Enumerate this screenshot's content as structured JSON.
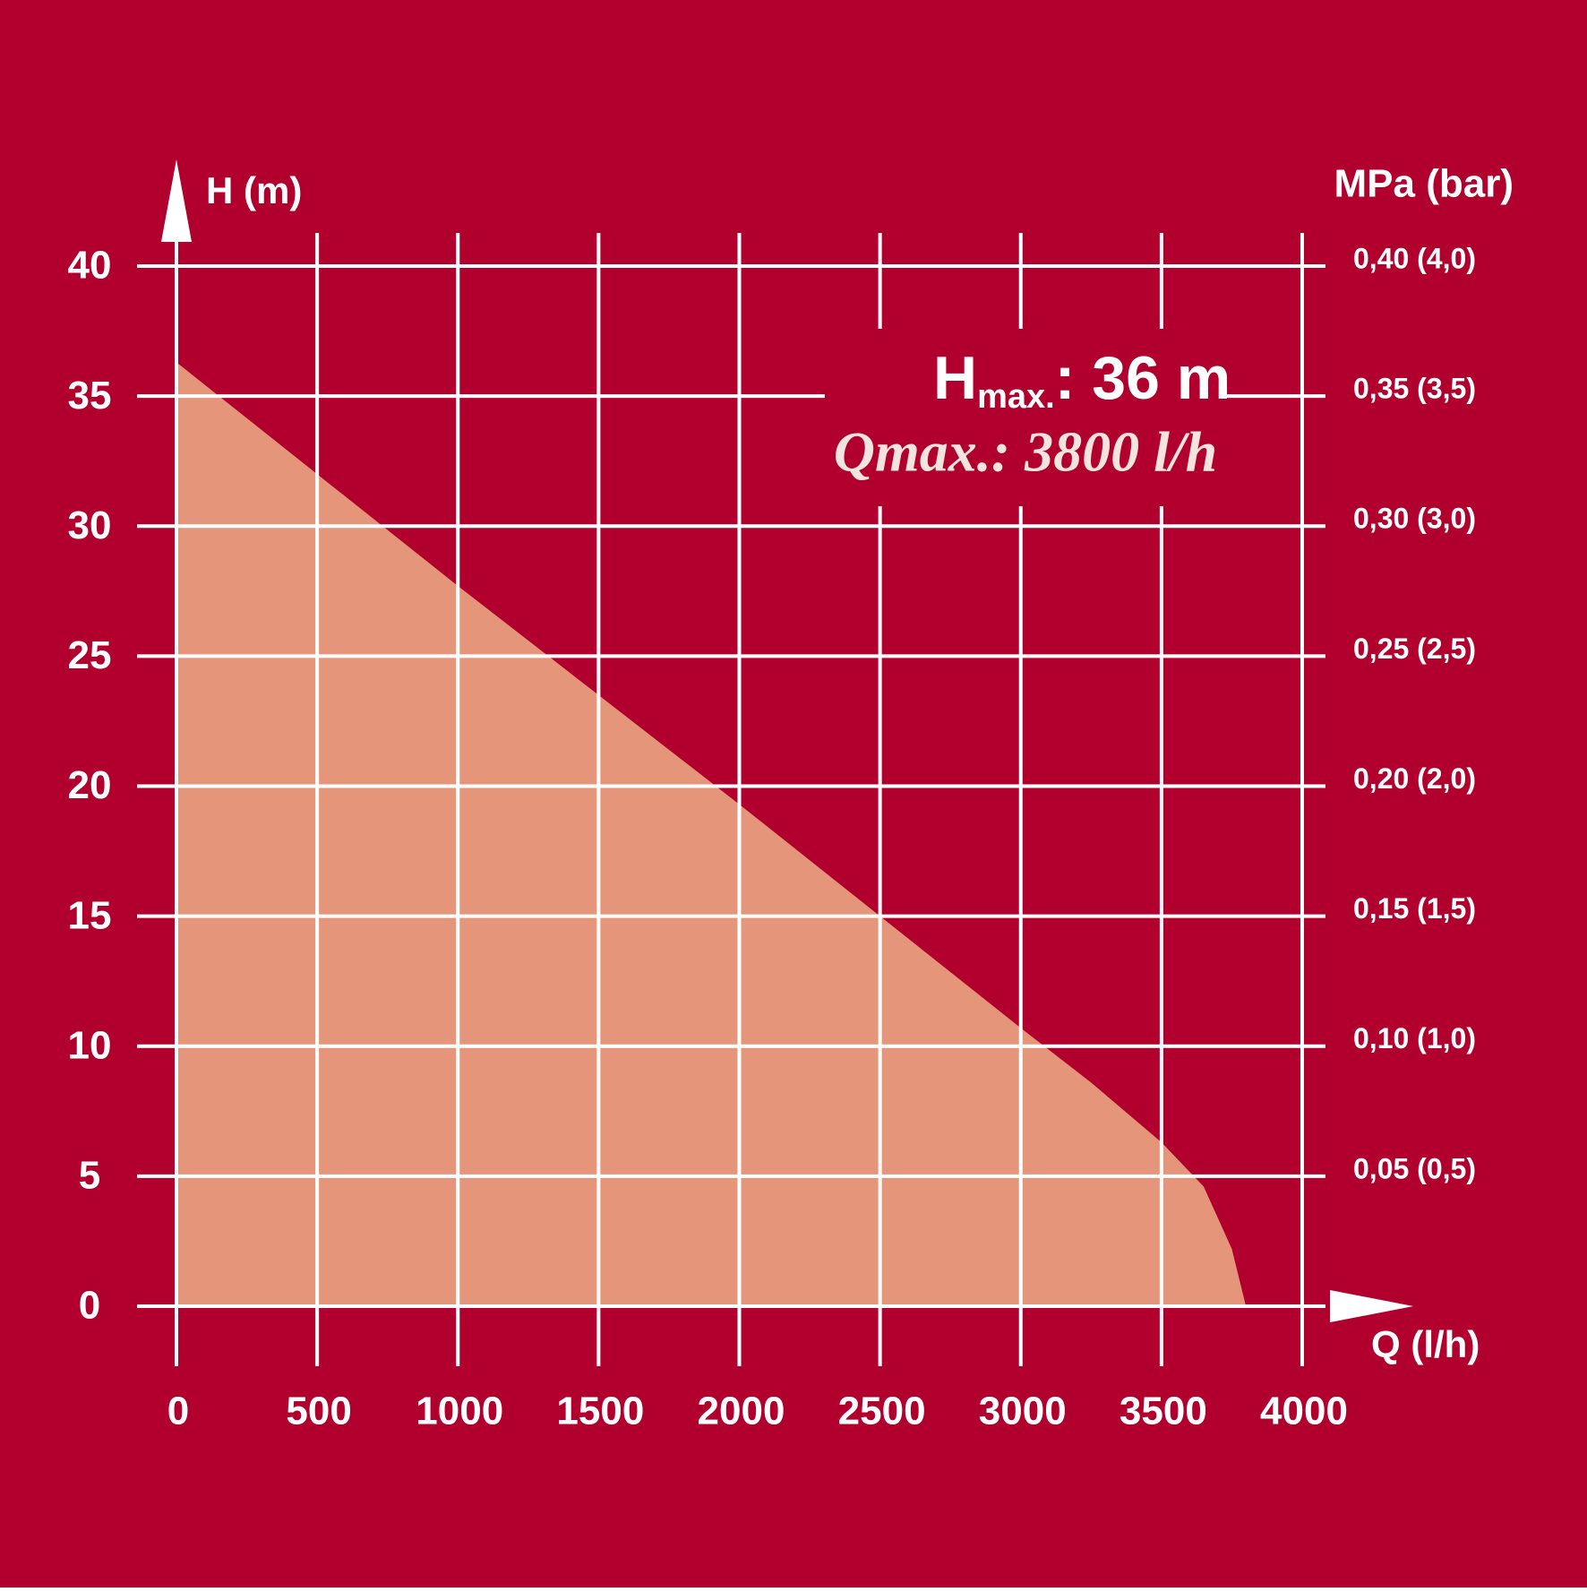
{
  "chart_data": {
    "type": "area",
    "x_label": "Q (l/h)",
    "y_label": "H (m)",
    "y2_label": "MPa (bar)",
    "x": [
      0,
      500,
      1000,
      1500,
      2000,
      2500,
      3000,
      3250,
      3500,
      3650,
      3750,
      3800
    ],
    "series": [
      {
        "color": "#e5957a",
        "values": [
          36.3,
          32.0,
          27.7,
          23.5,
          19.3,
          15.0,
          10.7,
          8.6,
          6.3,
          4.6,
          2.2,
          0
        ]
      }
    ],
    "xlim": [
      0,
      4000
    ],
    "xticks": [
      0,
      500,
      1000,
      1500,
      2000,
      2500,
      3000,
      3500,
      4000
    ],
    "ylim": [
      0,
      40
    ],
    "yticks": [
      0,
      5,
      10,
      15,
      20,
      25,
      30,
      35,
      40
    ],
    "y2lim": [
      0,
      0.4
    ],
    "y2ticks": [
      {
        "value": 0.05,
        "label": "0,05 (0,5)"
      },
      {
        "value": 0.1,
        "label": "0,10 (1,0)"
      },
      {
        "value": 0.15,
        "label": "0,15 (1,5)"
      },
      {
        "value": 0.2,
        "label": "0,20 (2,0)"
      },
      {
        "value": 0.25,
        "label": "0,25 (2,5)"
      },
      {
        "value": 0.3,
        "label": "0,30 (3,0)"
      },
      {
        "value": 0.35,
        "label": "0,35 (3,5)"
      },
      {
        "value": 0.4,
        "label": "0,40 (4,0)"
      }
    ],
    "grid": true,
    "background": "#b2002e",
    "grid_color": "#ffffff",
    "annotations": {
      "hmax": {
        "symbol": "H",
        "subscript": "max.",
        "text": ": 36 m"
      },
      "qmax": "Qmax.: 3800 l/h"
    }
  }
}
